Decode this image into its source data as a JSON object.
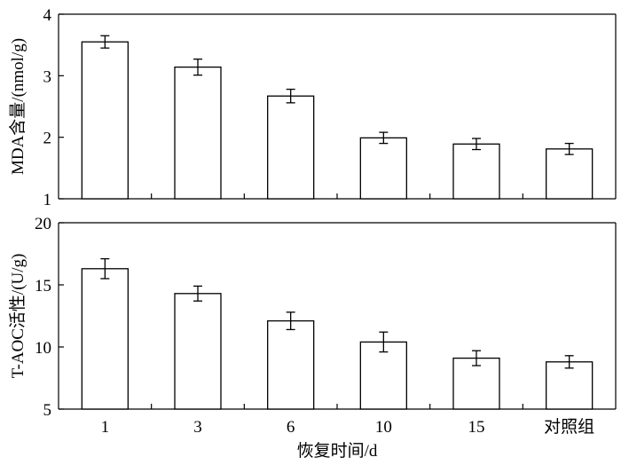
{
  "chart_data": [
    {
      "type": "bar",
      "categories": [
        "1",
        "3",
        "6",
        "10",
        "15",
        "对照组"
      ],
      "values": [
        3.55,
        3.14,
        2.67,
        1.99,
        1.89,
        1.81
      ],
      "errors": [
        0.1,
        0.13,
        0.11,
        0.09,
        0.09,
        0.09
      ],
      "ylabel": "MDA含量/(nmol/g)",
      "ylim": [
        1,
        4
      ],
      "yticks": [
        1,
        2,
        3,
        4
      ],
      "xlabel": "",
      "grid": false
    },
    {
      "type": "bar",
      "categories": [
        "1",
        "3",
        "6",
        "10",
        "15",
        "对照组"
      ],
      "values": [
        16.3,
        14.3,
        12.1,
        10.4,
        9.1,
        8.8
      ],
      "errors": [
        0.8,
        0.6,
        0.7,
        0.8,
        0.6,
        0.5
      ],
      "ylabel": "T-AOC活性/(U/g)",
      "ylim": [
        5,
        20
      ],
      "yticks": [
        5,
        10,
        15,
        20
      ],
      "xlabel": "恢复时间/d",
      "grid": false
    }
  ]
}
